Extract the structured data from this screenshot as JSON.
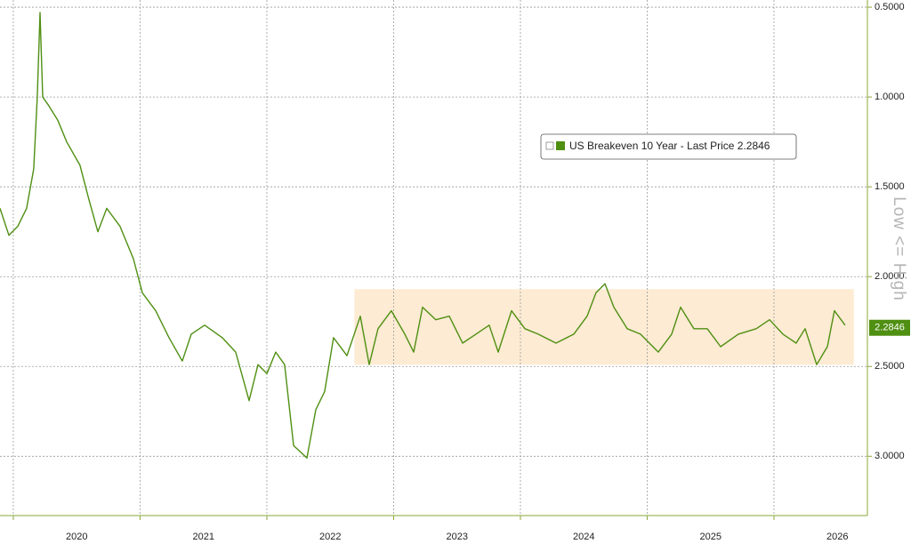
{
  "chart_data": {
    "type": "line",
    "axis_label": "Low <= High",
    "x": [
      2019.895,
      2019.965,
      2020.035,
      2020.105,
      2020.161,
      2020.189,
      2020.211,
      2020.232,
      2020.281,
      2020.351,
      2020.421,
      2020.526,
      2020.596,
      2020.667,
      2020.737,
      2020.842,
      2020.947,
      2021.018,
      2021.123,
      2021.228,
      2021.333,
      2021.404,
      2021.509,
      2021.649,
      2021.754,
      2021.86,
      2021.93,
      2022.0,
      2022.07,
      2022.14,
      2022.211,
      2022.316,
      2022.386,
      2022.456,
      2022.526,
      2022.632,
      2022.737,
      2022.807,
      2022.877,
      2022.982,
      2023.088,
      2023.158,
      2023.228,
      2023.333,
      2023.439,
      2023.544,
      2023.649,
      2023.754,
      2023.825,
      2023.93,
      2024.035,
      2024.14,
      2024.281,
      2024.421,
      2024.526,
      2024.596,
      2024.667,
      2024.737,
      2024.842,
      2024.947,
      2025.088,
      2025.193,
      2025.263,
      2025.368,
      2025.474,
      2025.579,
      2025.719,
      2025.86,
      2025.965,
      2026.07,
      2026.175,
      2026.246,
      2026.337,
      2026.421,
      2026.477,
      2026.561
    ],
    "series": [
      {
        "name": "US Breakeven 10 Year - Last Price 2.2846",
        "color": "#4f8f12",
        "values": [
          1.62,
          1.77,
          1.72,
          1.62,
          1.4,
          1.0,
          0.53,
          1.0,
          1.05,
          1.13,
          1.25,
          1.38,
          1.57,
          1.75,
          1.62,
          1.72,
          1.9,
          2.09,
          2.19,
          2.34,
          2.47,
          2.32,
          2.27,
          2.34,
          2.42,
          2.69,
          2.49,
          2.54,
          2.42,
          2.49,
          2.94,
          3.01,
          2.74,
          2.64,
          2.34,
          2.44,
          2.22,
          2.49,
          2.29,
          2.19,
          2.32,
          2.42,
          2.17,
          2.24,
          2.22,
          2.37,
          2.32,
          2.27,
          2.42,
          2.19,
          2.29,
          2.32,
          2.37,
          2.32,
          2.22,
          2.09,
          2.04,
          2.17,
          2.29,
          2.32,
          2.42,
          2.32,
          2.17,
          2.29,
          2.29,
          2.39,
          2.32,
          2.29,
          2.24,
          2.32,
          2.37,
          2.29,
          2.49,
          2.39,
          2.19,
          2.27
        ]
      }
    ],
    "last_price": 2.2846,
    "inverted": true,
    "xlim": [
      2019.895,
      2026.737
    ],
    "xticks": [
      {
        "value": 2020,
        "label": "2020"
      },
      {
        "value": 2021,
        "label": "2021"
      },
      {
        "value": 2022,
        "label": "2022"
      },
      {
        "value": 2023,
        "label": "2023"
      },
      {
        "value": 2024,
        "label": "2024"
      },
      {
        "value": 2025,
        "label": "2025"
      },
      {
        "value": 2026,
        "label": "2026"
      }
    ],
    "ylim": [
      0.46,
      3.33
    ],
    "yticks": [
      {
        "value": 0.5,
        "label": "0.5000"
      },
      {
        "value": 1.0,
        "label": "1.0000"
      },
      {
        "value": 1.5,
        "label": "1.5000"
      },
      {
        "value": 2.0,
        "label": "2.0000"
      },
      {
        "value": 2.5,
        "label": "2.5000"
      },
      {
        "value": 3.0,
        "label": "3.0000"
      }
    ],
    "highlight": {
      "x": [
        2022.69,
        2026.63
      ],
      "y": [
        2.07,
        2.49
      ],
      "color": "#fdebd3"
    },
    "grid": true
  }
}
